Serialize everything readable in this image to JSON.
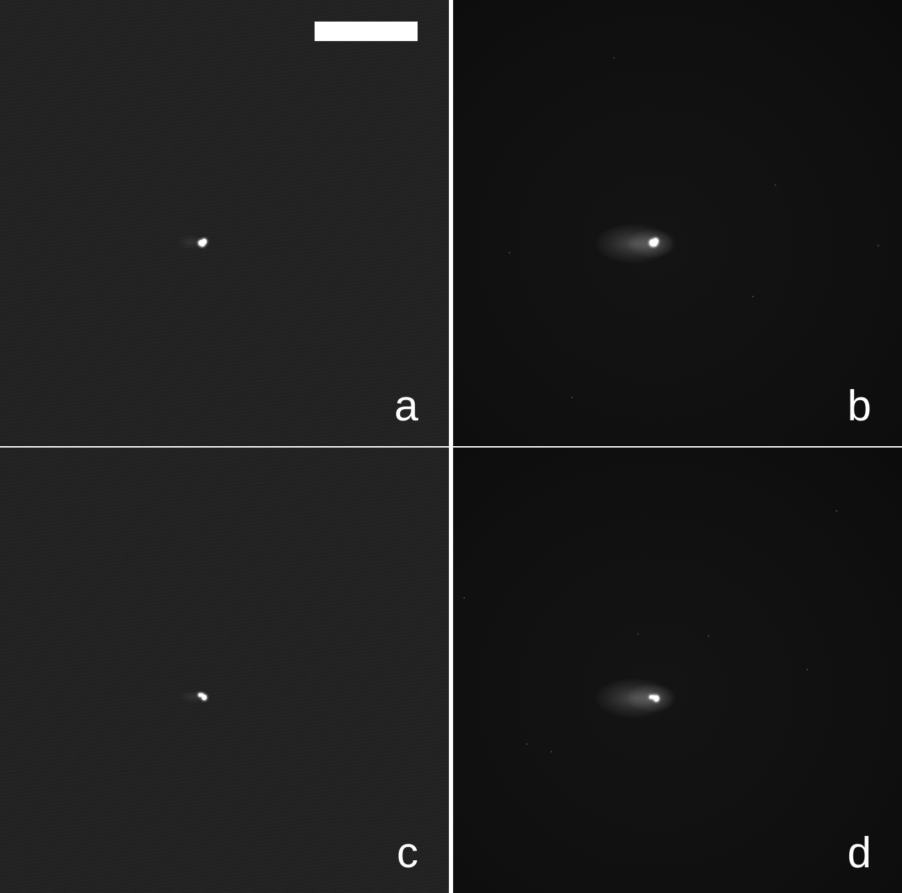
{
  "panels": [
    {
      "id": "a",
      "label": "a",
      "style": "textured",
      "scale_bar": true
    },
    {
      "id": "b",
      "label": "b",
      "style": "smooth",
      "scale_bar": false
    },
    {
      "id": "c",
      "label": "c",
      "style": "textured",
      "scale_bar": false
    },
    {
      "id": "d",
      "label": "d",
      "style": "smooth",
      "scale_bar": false
    }
  ],
  "colors": {
    "separator": "#ffffff",
    "panel_background_textured": "#222222",
    "panel_background_smooth": "#101010",
    "particle": "#ffffff",
    "label": "#ffffff"
  },
  "icons": [
    "scale-bar"
  ]
}
